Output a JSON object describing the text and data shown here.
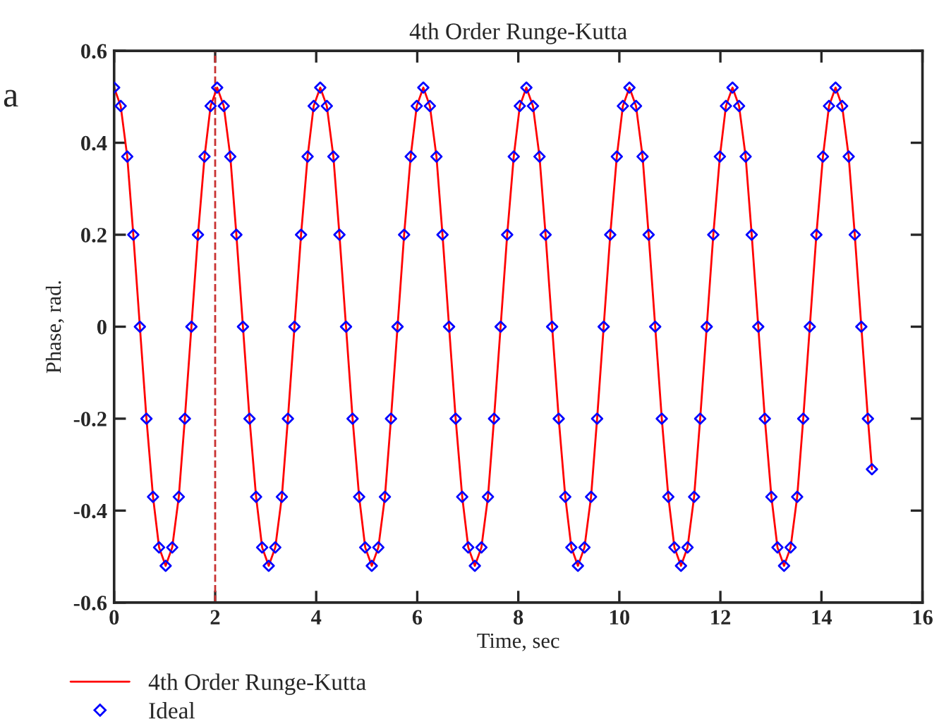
{
  "chart_data": {
    "type": "line",
    "title": "4th Order Runge-Kutta",
    "xlabel": "Time, sec",
    "ylabel": "Phase, rad.",
    "annotations": [
      "a"
    ],
    "x": [
      0,
      0.13,
      0.26,
      0.38,
      0.51,
      0.64,
      0.77,
      0.89,
      1.02,
      1.15,
      1.28,
      1.4,
      1.53,
      1.66,
      1.79,
      1.91,
      2.04,
      2.17,
      2.3,
      2.42,
      2.55,
      2.68,
      2.81,
      2.93,
      3.06,
      3.19,
      3.32,
      3.44,
      3.57,
      3.7,
      3.83,
      3.95,
      4.08,
      4.21,
      4.34,
      4.46,
      4.59,
      4.72,
      4.85,
      4.97,
      5.1,
      5.23,
      5.36,
      5.48,
      5.61,
      5.74,
      5.87,
      5.99,
      6.12,
      6.25,
      6.38,
      6.5,
      6.63,
      6.76,
      6.89,
      7.01,
      7.14,
      7.27,
      7.4,
      7.52,
      7.65,
      7.78,
      7.91,
      8.03,
      8.16,
      8.29,
      8.42,
      8.54,
      8.67,
      8.8,
      8.93,
      9.05,
      9.18,
      9.31,
      9.44,
      9.56,
      9.69,
      9.82,
      9.95,
      10.07,
      10.2,
      10.33,
      10.46,
      10.58,
      10.71,
      10.84,
      10.97,
      11.09,
      11.22,
      11.35,
      11.48,
      11.6,
      11.73,
      11.86,
      11.99,
      12.11,
      12.24,
      12.37,
      12.5,
      12.62,
      12.75,
      12.88,
      13.01,
      13.13,
      13.26,
      13.39,
      13.52,
      13.64,
      13.77,
      13.9,
      14.03,
      14.15,
      14.28,
      14.41,
      14.54,
      14.66,
      14.79,
      14.92,
      15.0
    ],
    "series": [
      {
        "name": "4th Order Runge-Kutta",
        "color": "#ff0000",
        "marker": "none",
        "line_style": "solid",
        "values": [
          0.52,
          0.48,
          0.37,
          0.2,
          0,
          -0.2,
          -0.37,
          -0.48,
          -0.52,
          -0.48,
          -0.37,
          -0.2,
          0,
          0.2,
          0.37,
          0.48,
          0.52,
          0.48,
          0.37,
          0.2,
          0,
          -0.2,
          -0.37,
          -0.48,
          -0.52,
          -0.48,
          -0.37,
          -0.2,
          0,
          0.2,
          0.37,
          0.48,
          0.52,
          0.48,
          0.37,
          0.2,
          0,
          -0.2,
          -0.37,
          -0.48,
          -0.52,
          -0.48,
          -0.37,
          -0.2,
          0,
          0.2,
          0.37,
          0.48,
          0.52,
          0.48,
          0.37,
          0.2,
          0,
          -0.2,
          -0.37,
          -0.48,
          -0.52,
          -0.48,
          -0.37,
          -0.2,
          0,
          0.2,
          0.37,
          0.48,
          0.52,
          0.48,
          0.37,
          0.2,
          0,
          -0.2,
          -0.37,
          -0.48,
          -0.52,
          -0.48,
          -0.37,
          -0.2,
          0,
          0.2,
          0.37,
          0.48,
          0.52,
          0.48,
          0.37,
          0.2,
          0,
          -0.2,
          -0.37,
          -0.48,
          -0.52,
          -0.48,
          -0.37,
          -0.2,
          0,
          0.2,
          0.37,
          0.48,
          0.52,
          0.48,
          0.37,
          0.2,
          0,
          -0.2,
          -0.37,
          -0.48,
          -0.52,
          -0.48,
          -0.37,
          -0.2,
          0,
          0.2,
          0.37,
          0.48,
          0.52,
          0.48,
          0.37,
          0.2,
          0,
          -0.2,
          -0.31
        ]
      },
      {
        "name": "Ideal",
        "type": "scatter",
        "color": "#0000ff",
        "marker": "diamond",
        "values": [
          0.52,
          0.48,
          0.37,
          0.2,
          0,
          -0.2,
          -0.37,
          -0.48,
          -0.52,
          -0.48,
          -0.37,
          -0.2,
          0,
          0.2,
          0.37,
          0.48,
          0.52,
          0.48,
          0.37,
          0.2,
          0,
          -0.2,
          -0.37,
          -0.48,
          -0.52,
          -0.48,
          -0.37,
          -0.2,
          0,
          0.2,
          0.37,
          0.48,
          0.52,
          0.48,
          0.37,
          0.2,
          0,
          -0.2,
          -0.37,
          -0.48,
          -0.52,
          -0.48,
          -0.37,
          -0.2,
          0,
          0.2,
          0.37,
          0.48,
          0.52,
          0.48,
          0.37,
          0.2,
          0,
          -0.2,
          -0.37,
          -0.48,
          -0.52,
          -0.48,
          -0.37,
          -0.2,
          0,
          0.2,
          0.37,
          0.48,
          0.52,
          0.48,
          0.37,
          0.2,
          0,
          -0.2,
          -0.37,
          -0.48,
          -0.52,
          -0.48,
          -0.37,
          -0.2,
          0,
          0.2,
          0.37,
          0.48,
          0.52,
          0.48,
          0.37,
          0.2,
          0,
          -0.2,
          -0.37,
          -0.48,
          -0.52,
          -0.48,
          -0.37,
          -0.2,
          0,
          0.2,
          0.37,
          0.48,
          0.52,
          0.48,
          0.37,
          0.2,
          0,
          -0.2,
          -0.37,
          -0.48,
          -0.52,
          -0.48,
          -0.37,
          -0.2,
          0,
          0.2,
          0.37,
          0.48,
          0.52,
          0.48,
          0.37,
          0.2,
          0,
          -0.2,
          -0.31
        ]
      }
    ],
    "xlim": [
      0,
      16
    ],
    "xticks": [
      0,
      2,
      4,
      6,
      8,
      10,
      12,
      14,
      16
    ],
    "ylim": [
      -0.6,
      0.6
    ],
    "yticks": [
      -0.6,
      -0.4,
      -0.2,
      0,
      0.2,
      0.4,
      0.6
    ],
    "ref_lines": [
      {
        "axis": "x",
        "value": 2,
        "color": "#c83232",
        "line_style": "dashed"
      }
    ],
    "grid": false,
    "legend": "bottom"
  }
}
